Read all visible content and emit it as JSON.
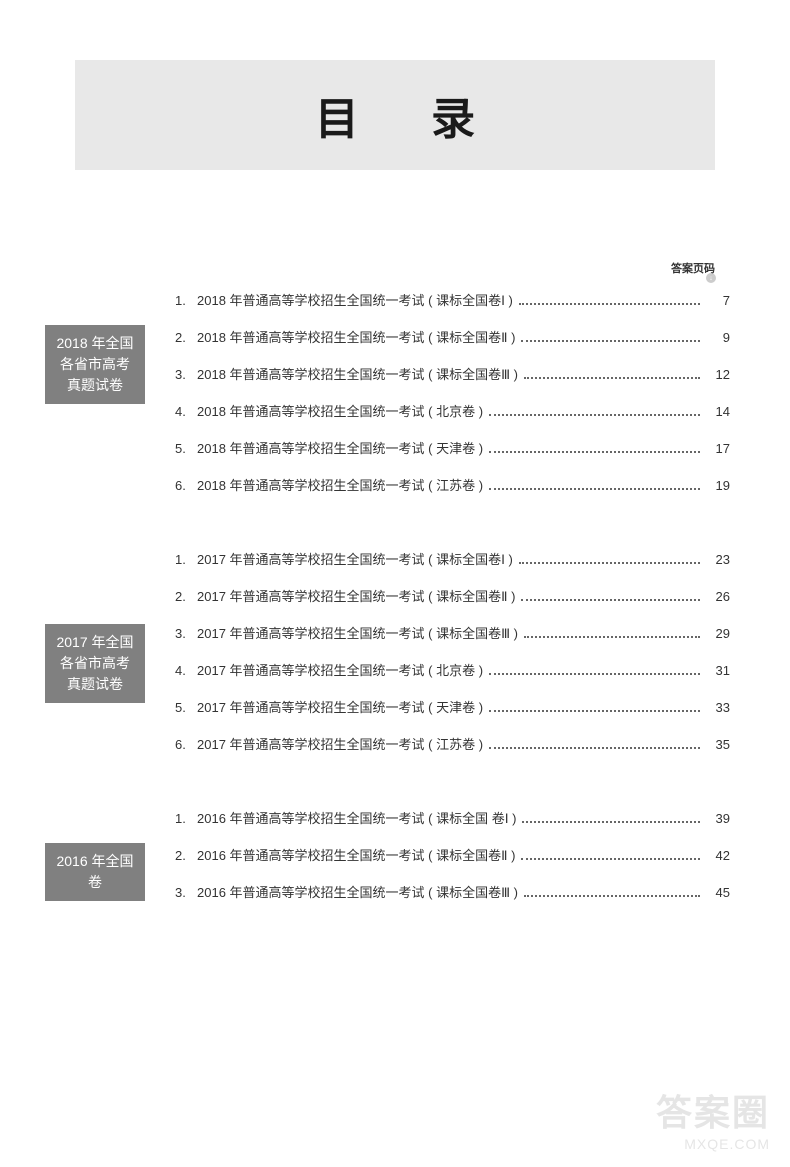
{
  "title": "目 录",
  "answer_header": "答案页码",
  "sections": [
    {
      "label": "2018 年全国各省市高考真题试卷",
      "entries": [
        {
          "num": "1.",
          "title": "2018 年普通高等学校招生全国统一考试 ( 课标全国卷Ⅰ )",
          "page": "7"
        },
        {
          "num": "2.",
          "title": "2018 年普通高等学校招生全国统一考试 ( 课标全国卷Ⅱ )",
          "page": "9"
        },
        {
          "num": "3.",
          "title": "2018 年普通高等学校招生全国统一考试 ( 课标全国卷Ⅲ )",
          "page": "12"
        },
        {
          "num": "4.",
          "title": "2018 年普通高等学校招生全国统一考试 ( 北京卷 )",
          "page": "14"
        },
        {
          "num": "5.",
          "title": "2018 年普通高等学校招生全国统一考试 ( 天津卷 )",
          "page": "17"
        },
        {
          "num": "6.",
          "title": "2018 年普通高等学校招生全国统一考试 ( 江苏卷 )",
          "page": "19"
        }
      ]
    },
    {
      "label": "2017 年全国各省市高考真题试卷",
      "entries": [
        {
          "num": "1.",
          "title": "2017 年普通高等学校招生全国统一考试 ( 课标全国卷Ⅰ )",
          "page": "23"
        },
        {
          "num": "2.",
          "title": "2017 年普通高等学校招生全国统一考试 ( 课标全国卷Ⅱ )",
          "page": "26"
        },
        {
          "num": "3.",
          "title": "2017 年普通高等学校招生全国统一考试 ( 课标全国卷Ⅲ )",
          "page": "29"
        },
        {
          "num": "4.",
          "title": "2017 年普通高等学校招生全国统一考试 ( 北京卷 )",
          "page": "31"
        },
        {
          "num": "5.",
          "title": "2017 年普通高等学校招生全国统一考试 ( 天津卷 )",
          "page": "33"
        },
        {
          "num": "6.",
          "title": "2017 年普通高等学校招生全国统一考试 ( 江苏卷 )",
          "page": "35"
        }
      ]
    },
    {
      "label": "2016 年全国卷",
      "entries": [
        {
          "num": "1.",
          "title": "2016 年普通高等学校招生全国统一考试 ( 课标全国 卷Ⅰ )",
          "page": "39"
        },
        {
          "num": "2.",
          "title": "2016 年普通高等学校招生全国统一考试 ( 课标全国卷Ⅱ )",
          "page": "42"
        },
        {
          "num": "3.",
          "title": "2016 年普通高等学校招生全国统一考试 ( 课标全国卷Ⅲ )",
          "page": "45"
        }
      ]
    }
  ],
  "watermark": {
    "logo": "答案圈",
    "url": "MXQE.COM"
  },
  "colors": {
    "banner_bg": "#e8e8e8",
    "label_bg": "#808080",
    "text": "#333333",
    "title": "#1a1a1a",
    "watermark": "#999999"
  }
}
